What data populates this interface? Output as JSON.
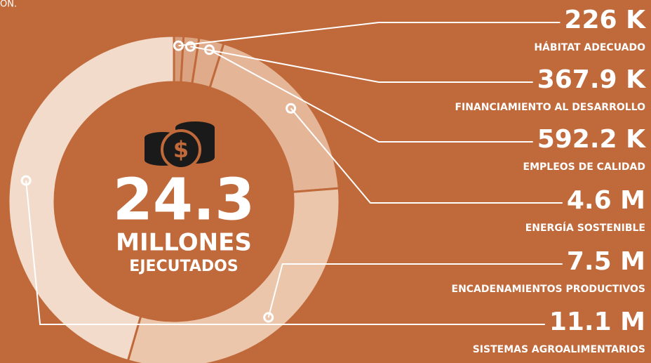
{
  "chart_data": {
    "type": "donut",
    "caption": "ÓN.",
    "center_value": "24.3",
    "center_unit": "MILLONES",
    "center_label": "EJECUTADOS",
    "categories": [
      "HÁBITAT ADECUADO",
      "FINANCIAMIENTO AL DESARROLLO",
      "EMPLEOS DE CALIDAD",
      "ENERGÍA SOSTENIBLE",
      "ENCADENAMIENTOS PRODUCTIVOS",
      "SISTEMAS AGROALIMENTARIOS"
    ],
    "values": [
      226000,
      367900,
      592200,
      4600000,
      7500000,
      11100000
    ],
    "value_labels": [
      "226 K",
      "367.9 K",
      "592.2 K",
      "4.6 M",
      "7.5 M",
      "11.1 M"
    ],
    "colors": [
      "#d79c7a",
      "#dba382",
      "#dfab8b",
      "#e4b596",
      "#ebc6ab",
      "#f2dbca"
    ]
  }
}
